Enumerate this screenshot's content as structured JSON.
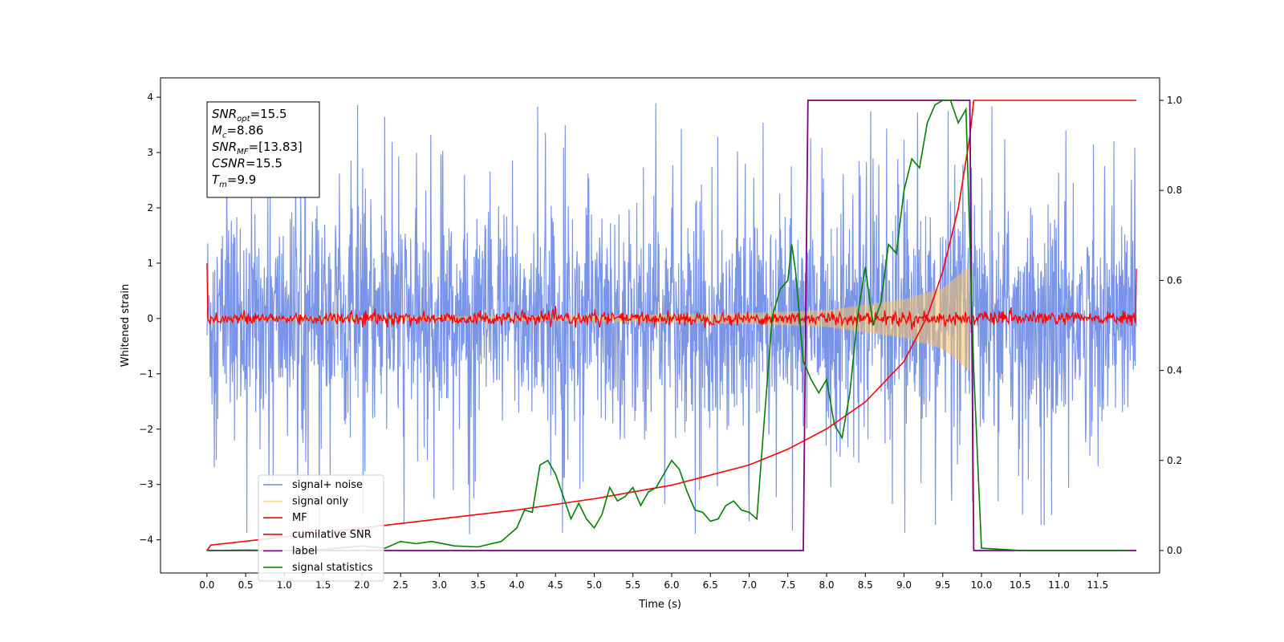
{
  "chart_data": {
    "type": "line",
    "xlabel": "Time (s)",
    "ylabel": "Whitened strain",
    "xlim": [
      -0.6,
      12.3
    ],
    "ylim_left": [
      -4.6,
      4.35
    ],
    "ylim_right": [
      -0.05,
      1.05
    ],
    "x_ticks": [
      "0.0",
      "0.5",
      "1.0",
      "1.5",
      "2.0",
      "2.5",
      "3.0",
      "3.5",
      "4.0",
      "4.5",
      "5.0",
      "5.5",
      "6.0",
      "6.5",
      "7.0",
      "7.5",
      "8.0",
      "8.5",
      "9.0",
      "9.5",
      "10.0",
      "10.5",
      "11.0",
      "11.5"
    ],
    "y_ticks_left": [
      "−4",
      "−3",
      "−2",
      "−1",
      "0",
      "1",
      "2",
      "3",
      "4"
    ],
    "y_ticks_right": [
      "0.0",
      "0.2",
      "0.4",
      "0.6",
      "0.8",
      "1.0"
    ],
    "grid": false,
    "legend_position": "lower-left",
    "annotation": {
      "lines": [
        {
          "base": "SNR",
          "sub": "opt",
          "rest": "=15.5"
        },
        {
          "base": "M",
          "sub": "c",
          "rest": "=8.86"
        },
        {
          "base": "SNR",
          "sub": "MF",
          "rest": "=[13.83]"
        },
        {
          "base": "CSNR",
          "sub": "",
          "rest": "=15.5"
        },
        {
          "base": "T",
          "sub": "m",
          "rest": "=9.9"
        }
      ]
    },
    "series": [
      {
        "name": "signal+ noise",
        "color": "#6b8ae6",
        "axis": "left",
        "description_values": {
          "x_range": [
            0.0,
            12.0
          ],
          "amplitude_typical": 1.5,
          "amplitude_peak": 3.9
        }
      },
      {
        "name": "signal only",
        "color": "#f5c063",
        "axis": "left",
        "description_values": {
          "x_range": [
            0.0,
            9.9
          ],
          "envelope": [
            [
              0.0,
              0.02
            ],
            [
              5.0,
              0.05
            ],
            [
              7.0,
              0.1
            ],
            [
              8.0,
              0.15
            ],
            [
              9.0,
              0.35
            ],
            [
              9.5,
              0.55
            ],
            [
              9.85,
              0.95
            ]
          ]
        }
      },
      {
        "name": "MF",
        "color": "#ff0000",
        "axis": "left",
        "description_values": {
          "x_range": [
            0.0,
            12.0
          ],
          "start": 1.0,
          "end": 0.9,
          "noise_amplitude": 0.12
        }
      },
      {
        "name": "cumilative SNR",
        "color": "#ff0000",
        "axis": "right",
        "points": [
          [
            0.0,
            0.0
          ],
          [
            0.05,
            0.012
          ],
          [
            1.0,
            0.03
          ],
          [
            2.0,
            0.05
          ],
          [
            3.0,
            0.07
          ],
          [
            4.0,
            0.09
          ],
          [
            5.0,
            0.115
          ],
          [
            6.0,
            0.145
          ],
          [
            7.0,
            0.19
          ],
          [
            7.5,
            0.225
          ],
          [
            8.0,
            0.27
          ],
          [
            8.5,
            0.33
          ],
          [
            9.0,
            0.42
          ],
          [
            9.3,
            0.52
          ],
          [
            9.5,
            0.62
          ],
          [
            9.7,
            0.76
          ],
          [
            9.85,
            0.92
          ],
          [
            9.9,
            1.0
          ],
          [
            12.0,
            1.0
          ]
        ]
      },
      {
        "name": "label",
        "color": "#800080",
        "axis": "right",
        "points": [
          [
            0.0,
            0.0
          ],
          [
            7.7,
            0.0
          ],
          [
            7.76,
            1.0
          ],
          [
            9.85,
            1.0
          ],
          [
            9.9,
            0.0
          ],
          [
            12.0,
            0.0
          ]
        ]
      },
      {
        "name": "signal statistics",
        "color": "#008000",
        "axis": "right",
        "points": [
          [
            0.0,
            0.0
          ],
          [
            0.5,
            0.001
          ],
          [
            1.0,
            0.0
          ],
          [
            1.5,
            0.002
          ],
          [
            2.0,
            0.01
          ],
          [
            2.3,
            0.005
          ],
          [
            2.5,
            0.02
          ],
          [
            2.7,
            0.015
          ],
          [
            2.9,
            0.02
          ],
          [
            3.2,
            0.01
          ],
          [
            3.5,
            0.008
          ],
          [
            3.8,
            0.02
          ],
          [
            4.0,
            0.05
          ],
          [
            4.1,
            0.09
          ],
          [
            4.2,
            0.085
          ],
          [
            4.3,
            0.19
          ],
          [
            4.4,
            0.2
          ],
          [
            4.5,
            0.17
          ],
          [
            4.6,
            0.12
          ],
          [
            4.7,
            0.07
          ],
          [
            4.8,
            0.105
          ],
          [
            4.9,
            0.07
          ],
          [
            5.0,
            0.05
          ],
          [
            5.1,
            0.08
          ],
          [
            5.2,
            0.14
          ],
          [
            5.3,
            0.11
          ],
          [
            5.4,
            0.12
          ],
          [
            5.5,
            0.14
          ],
          [
            5.6,
            0.1
          ],
          [
            5.7,
            0.13
          ],
          [
            5.8,
            0.14
          ],
          [
            5.9,
            0.17
          ],
          [
            6.0,
            0.2
          ],
          [
            6.1,
            0.18
          ],
          [
            6.2,
            0.13
          ],
          [
            6.3,
            0.09
          ],
          [
            6.4,
            0.085
          ],
          [
            6.5,
            0.065
          ],
          [
            6.6,
            0.07
          ],
          [
            6.7,
            0.1
          ],
          [
            6.8,
            0.11
          ],
          [
            6.9,
            0.09
          ],
          [
            7.0,
            0.085
          ],
          [
            7.1,
            0.07
          ],
          [
            7.2,
            0.3
          ],
          [
            7.3,
            0.52
          ],
          [
            7.4,
            0.58
          ],
          [
            7.5,
            0.6
          ],
          [
            7.55,
            0.68
          ],
          [
            7.6,
            0.62
          ],
          [
            7.7,
            0.42
          ],
          [
            7.8,
            0.38
          ],
          [
            7.9,
            0.35
          ],
          [
            8.0,
            0.38
          ],
          [
            8.1,
            0.28
          ],
          [
            8.2,
            0.25
          ],
          [
            8.3,
            0.35
          ],
          [
            8.4,
            0.52
          ],
          [
            8.5,
            0.63
          ],
          [
            8.6,
            0.5
          ],
          [
            8.7,
            0.55
          ],
          [
            8.8,
            0.68
          ],
          [
            8.9,
            0.66
          ],
          [
            9.0,
            0.8
          ],
          [
            9.1,
            0.87
          ],
          [
            9.2,
            0.85
          ],
          [
            9.3,
            0.95
          ],
          [
            9.4,
            0.99
          ],
          [
            9.5,
            1.0
          ],
          [
            9.6,
            1.0
          ],
          [
            9.7,
            0.95
          ],
          [
            9.8,
            0.98
          ],
          [
            9.9,
            0.4
          ],
          [
            10.0,
            0.005
          ],
          [
            10.5,
            0.0
          ],
          [
            11.0,
            0.0
          ],
          [
            11.5,
            0.0
          ],
          [
            11.9,
            0.0
          ]
        ]
      }
    ]
  }
}
